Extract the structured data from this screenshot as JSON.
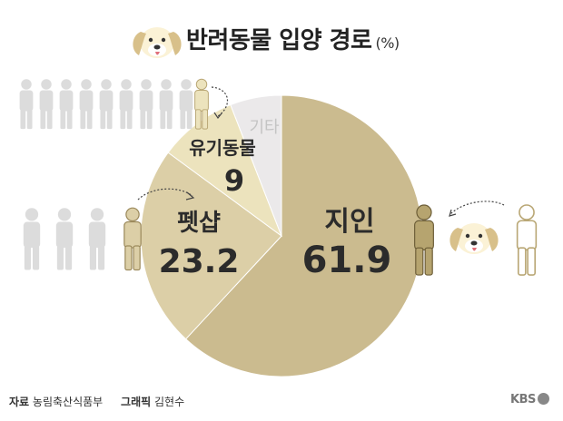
{
  "title": "반려동물 입양 경로",
  "unit": "(%)",
  "footer": {
    "source_label": "자료",
    "source": "농림축산식품부",
    "graphic_label": "그래픽",
    "graphic": "김현수"
  },
  "logo": "KBS",
  "chart_data": {
    "type": "pie",
    "slices": [
      {
        "label": "지인",
        "value": 61.9,
        "color": "#cbbb8f"
      },
      {
        "label": "펫샵",
        "value": 23.2,
        "color": "#dccfa7"
      },
      {
        "label": "유기동물",
        "value": 9,
        "color": "#ece3bd"
      },
      {
        "label": "기타",
        "value": 5.9,
        "color": "#ebe9ea"
      }
    ],
    "value_labels": [
      "61.9",
      "23.2",
      "9",
      ""
    ]
  }
}
